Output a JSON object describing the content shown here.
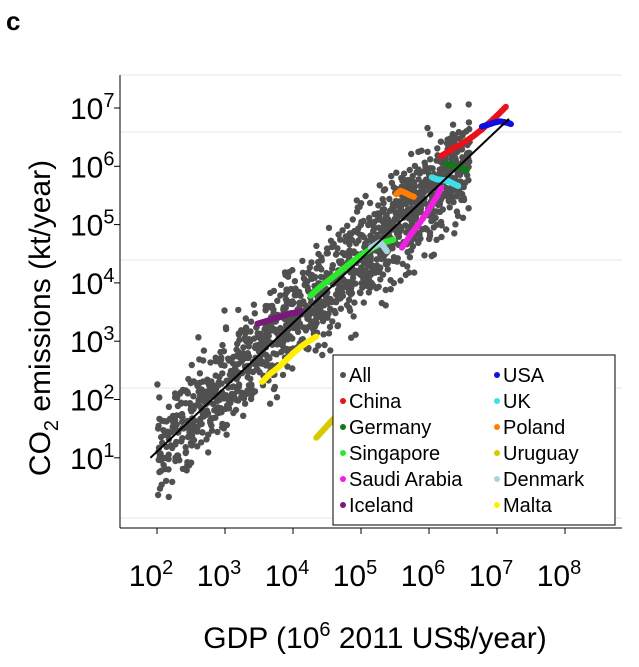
{
  "panel_label": "c",
  "chart_data": {
    "type": "scatter",
    "xlabel_parts": [
      "GDP (10",
      "6",
      " 2011 US$/year)"
    ],
    "ylabel_parts": [
      "CO",
      "2",
      " emissions (kt/year)"
    ],
    "x_scale": "log",
    "y_scale": "log",
    "xlim": [
      50,
      300000000
    ],
    "ylim": [
      1,
      20000000
    ],
    "x_ticks": [
      {
        "base": "10",
        "exp": "2",
        "value": 100
      },
      {
        "base": "10",
        "exp": "3",
        "value": 1000
      },
      {
        "base": "10",
        "exp": "4",
        "value": 10000
      },
      {
        "base": "10",
        "exp": "5",
        "value": 100000
      },
      {
        "base": "10",
        "exp": "6",
        "value": 1000000
      },
      {
        "base": "10",
        "exp": "7",
        "value": 10000000
      },
      {
        "base": "10",
        "exp": "8",
        "value": 100000000
      }
    ],
    "y_ticks": [
      {
        "base": "10",
        "exp": "1",
        "value": 10
      },
      {
        "base": "10",
        "exp": "2",
        "value": 100
      },
      {
        "base": "10",
        "exp": "3",
        "value": 1000
      },
      {
        "base": "10",
        "exp": "4",
        "value": 10000
      },
      {
        "base": "10",
        "exp": "5",
        "value": 100000
      },
      {
        "base": "10",
        "exp": "6",
        "value": 1000000
      },
      {
        "base": "10",
        "exp": "7",
        "value": 10000000
      }
    ],
    "fit_line": {
      "x": [
        80,
        15000000
      ],
      "y": [
        10,
        6500000
      ]
    },
    "legend_position": "bottom-right",
    "legend_columns": 2,
    "series": [
      {
        "name": "All",
        "color": "#505050",
        "x": [],
        "y": []
      },
      {
        "name": "China",
        "color": "#e8141b",
        "x": [
          1500000,
          1800000,
          2200000,
          2800000,
          3500000,
          4500000,
          6000000,
          8000000,
          10500000,
          13500000
        ],
        "y": [
          1500000,
          1700000,
          2000000,
          2300000,
          2700000,
          3300000,
          4300000,
          5800000,
          7800000,
          10500000
        ]
      },
      {
        "name": "USA",
        "color": "#1010e0",
        "x": [
          6000000,
          7500000,
          9000000,
          11000000,
          13000000,
          15000000,
          16000000
        ],
        "y": [
          4800000,
          5200000,
          5600000,
          5900000,
          5700000,
          5500000,
          5300000
        ]
      },
      {
        "name": "Germany",
        "color": "#127a1a",
        "x": [
          1800000,
          2100000,
          2500000,
          2900000,
          3300000,
          3600000
        ],
        "y": [
          1100000,
          1050000,
          1000000,
          950000,
          900000,
          850000
        ]
      },
      {
        "name": "UK",
        "color": "#3fe0e8",
        "x": [
          1100000,
          1300000,
          1600000,
          1900000,
          2300000,
          2700000
        ],
        "y": [
          650000,
          600000,
          580000,
          560000,
          500000,
          460000
        ]
      },
      {
        "name": "Singapore",
        "color": "#2ee82e",
        "x": [
          18000,
          25000,
          35000,
          50000,
          70000,
          100000,
          150000,
          220000,
          300000
        ],
        "y": [
          6000,
          8500,
          11500,
          16000,
          22000,
          30000,
          40000,
          50000,
          55000
        ]
      },
      {
        "name": "Poland",
        "color": "#ff7f00",
        "x": [
          330000,
          380000,
          450000,
          520000,
          600000
        ],
        "y": [
          330000,
          380000,
          350000,
          320000,
          300000
        ]
      },
      {
        "name": "Uruguay",
        "color": "#d8c800",
        "x": [
          22000,
          28000,
          35000,
          42000,
          50000,
          60000
        ],
        "y": [
          22.0,
          30.0,
          40.0,
          50.0,
          60.0,
          70.0
        ]
      },
      {
        "name": "Saudi Arabia",
        "color": "#f020e0",
        "x": [
          400000,
          550000,
          700000,
          900000,
          1100000,
          1300000,
          1500000
        ],
        "y": [
          40000,
          70000,
          100000,
          150000,
          220000,
          300000,
          420000
        ]
      },
      {
        "name": "Denmark",
        "color": "#a8d4e0",
        "x": [
          140000,
          165000,
          190000,
          215000,
          240000
        ],
        "y": [
          40000,
          45000,
          50000,
          42000,
          35000
        ]
      },
      {
        "name": "Iceland",
        "color": "#7a1a7a",
        "x": [
          3000,
          4000,
          5500,
          7000,
          9000,
          11000,
          13000
        ],
        "y": [
          2000,
          2200,
          2500,
          2700,
          3000,
          3100,
          3200
        ]
      },
      {
        "name": "Malta",
        "color": "#ffee00",
        "x": [
          3500,
          4500,
          6000,
          8000,
          10000,
          13000,
          17000,
          22000
        ],
        "y": [
          200,
          270,
          350,
          480,
          620,
          800,
          1000,
          1200
        ]
      }
    ]
  }
}
